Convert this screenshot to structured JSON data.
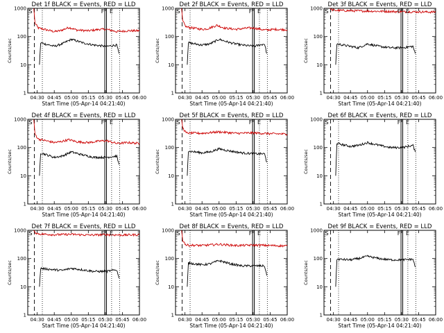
{
  "chart_data": [
    {
      "type": "line",
      "title": "Det 1f BLACK = Events, RED = LLD",
      "xlabel": "Start Time (05-Apr-14 04:21:40)",
      "ylabel": "Counts/sec",
      "yscale": "log",
      "ylim": [
        1,
        1000
      ],
      "xlim": [
        "04:21:40",
        "06:00"
      ],
      "x_ticks": [
        "04:30",
        "04:45",
        "05:00",
        "05:15",
        "05:30",
        "05:45",
        "06:00"
      ],
      "y_ticks": [
        "1",
        "10",
        "100",
        "1000"
      ],
      "markers": [
        "S",
        "F",
        "E"
      ],
      "series": [
        {
          "color": "#cc0000",
          "x": [
            "04:27",
            "04:28",
            "04:31",
            "04:45",
            "04:50",
            "04:58",
            "05:05",
            "05:15",
            "05:25",
            "05:31",
            "05:40",
            "05:50",
            "06:00"
          ],
          "values": [
            1000,
            300,
            200,
            150,
            160,
            210,
            170,
            160,
            180,
            180,
            150,
            160,
            160
          ]
        },
        {
          "color": "#000000",
          "x": [
            "04:32",
            "04:33",
            "04:45",
            "04:52",
            "05:00",
            "05:10",
            "05:20",
            "05:31",
            "05:40",
            "05:42"
          ],
          "values": [
            10,
            60,
            45,
            55,
            80,
            60,
            50,
            45,
            50,
            25
          ]
        }
      ]
    },
    {
      "type": "line",
      "title": "Det 2f BLACK = Events, RED = LLD",
      "xlabel": "Start Time (05-Apr-14 04:21:40)",
      "ylabel": "Counts/sec",
      "yscale": "log",
      "ylim": [
        1,
        1000
      ],
      "xlim": [
        "04:21:40",
        "06:00"
      ],
      "x_ticks": [
        "04:30",
        "04:45",
        "05:00",
        "05:15",
        "05:30",
        "05:45",
        "06:00"
      ],
      "y_ticks": [
        "1",
        "10",
        "100",
        "1000"
      ],
      "markers": [
        "S",
        "F",
        "E"
      ],
      "series": [
        {
          "color": "#cc0000",
          "x": [
            "04:27",
            "04:28",
            "04:31",
            "04:45",
            "04:50",
            "04:58",
            "05:05",
            "05:15",
            "05:25",
            "05:31",
            "05:40",
            "05:50",
            "06:00"
          ],
          "values": [
            1000,
            350,
            220,
            180,
            190,
            250,
            200,
            180,
            200,
            200,
            170,
            180,
            175
          ]
        },
        {
          "color": "#000000",
          "x": [
            "04:32",
            "04:33",
            "04:45",
            "04:52",
            "05:00",
            "05:10",
            "05:20",
            "05:31",
            "05:40",
            "05:42"
          ],
          "values": [
            10,
            60,
            50,
            55,
            80,
            60,
            50,
            45,
            55,
            25
          ]
        }
      ]
    },
    {
      "type": "line",
      "title": "Det 3f BLACK = Events, RED = LLD",
      "xlabel": "Start Time (05-Apr-14 04:21:40)",
      "ylabel": "Counts/sec",
      "yscale": "log",
      "ylim": [
        1,
        1000
      ],
      "xlim": [
        "04:21:40",
        "06:00"
      ],
      "x_ticks": [
        "04:30",
        "04:45",
        "05:00",
        "05:15",
        "05:30",
        "05:45",
        "06:00"
      ],
      "y_ticks": [
        "1",
        "10",
        "100",
        "1000"
      ],
      "markers": [
        "S",
        "F",
        "E"
      ],
      "series": [
        {
          "color": "#cc0000",
          "x": [
            "04:27",
            "04:28",
            "04:31",
            "04:45",
            "05:00",
            "05:15",
            "05:31",
            "05:45",
            "06:00"
          ],
          "values": [
            1000,
            900,
            850,
            820,
            800,
            780,
            760,
            750,
            740
          ]
        },
        {
          "color": "#000000",
          "x": [
            "04:32",
            "04:33",
            "04:45",
            "04:52",
            "05:00",
            "05:10",
            "05:20",
            "05:31",
            "05:40",
            "05:42"
          ],
          "values": [
            10,
            55,
            45,
            40,
            55,
            45,
            40,
            40,
            45,
            25
          ]
        }
      ]
    },
    {
      "type": "line",
      "title": "Det 4f BLACK = Events, RED = LLD",
      "xlabel": "Start Time (05-Apr-14 04:21:40)",
      "ylabel": "Counts/sec",
      "yscale": "log",
      "ylim": [
        1,
        1000
      ],
      "xlim": [
        "04:21:40",
        "06:00"
      ],
      "x_ticks": [
        "04:30",
        "04:45",
        "05:00",
        "05:15",
        "05:30",
        "05:45",
        "06:00"
      ],
      "y_ticks": [
        "1",
        "10",
        "100",
        "1000"
      ],
      "markers": [
        "S",
        "F",
        "E"
      ],
      "series": [
        {
          "color": "#cc0000",
          "x": [
            "04:27",
            "04:28",
            "04:31",
            "04:45",
            "04:50",
            "04:58",
            "05:05",
            "05:15",
            "05:25",
            "05:31",
            "05:40",
            "05:50",
            "06:00"
          ],
          "values": [
            1000,
            300,
            200,
            150,
            160,
            190,
            160,
            150,
            170,
            175,
            140,
            150,
            140
          ]
        },
        {
          "color": "#000000",
          "x": [
            "04:32",
            "04:33",
            "04:45",
            "04:52",
            "05:00",
            "05:10",
            "05:20",
            "05:31",
            "05:40",
            "05:42"
          ],
          "values": [
            10,
            65,
            45,
            50,
            70,
            55,
            45,
            45,
            50,
            25
          ]
        }
      ]
    },
    {
      "type": "line",
      "title": "Det 5f BLACK = Events, RED = LLD",
      "xlabel": "Start Time (05-Apr-14 04:21:40)",
      "ylabel": "Counts/sec",
      "yscale": "log",
      "ylim": [
        1,
        1000
      ],
      "xlim": [
        "04:21:40",
        "06:00"
      ],
      "x_ticks": [
        "04:30",
        "04:45",
        "05:00",
        "05:15",
        "05:30",
        "05:45",
        "06:00"
      ],
      "y_ticks": [
        "1",
        "10",
        "100",
        "1000"
      ],
      "markers": [
        "S",
        "F",
        "E"
      ],
      "series": [
        {
          "color": "#cc0000",
          "x": [
            "04:27",
            "04:28",
            "04:31",
            "04:45",
            "05:00",
            "05:15",
            "05:31",
            "05:45",
            "06:00"
          ],
          "values": [
            1000,
            500,
            330,
            320,
            360,
            320,
            330,
            310,
            300
          ]
        },
        {
          "color": "#000000",
          "x": [
            "04:32",
            "04:33",
            "04:45",
            "04:52",
            "05:00",
            "05:10",
            "05:20",
            "05:31",
            "05:40",
            "05:42"
          ],
          "values": [
            10,
            75,
            65,
            70,
            90,
            75,
            65,
            60,
            60,
            30
          ]
        }
      ]
    },
    {
      "type": "line",
      "title": "Det 6f BLACK = Events, RED = LLD",
      "xlabel": "Start Time (05-Apr-14 04:21:40)",
      "ylabel": "Counts/sec",
      "yscale": "log",
      "ylim": [
        1,
        1000
      ],
      "xlim": [
        "04:21:40",
        "06:00"
      ],
      "x_ticks": [
        "04:30",
        "04:45",
        "05:00",
        "05:15",
        "05:30",
        "05:45",
        "06:00"
      ],
      "y_ticks": [
        "1",
        "10",
        "100",
        "1000"
      ],
      "markers": [
        "S",
        "F",
        "E"
      ],
      "series": [
        {
          "color": "#000000",
          "x": [
            "04:32",
            "04:33",
            "04:45",
            "04:52",
            "05:00",
            "05:10",
            "05:20",
            "05:31",
            "05:40",
            "05:42"
          ],
          "values": [
            10,
            140,
            110,
            120,
            150,
            120,
            100,
            100,
            120,
            70
          ]
        }
      ]
    },
    {
      "type": "line",
      "title": "Det 7f BLACK = Events, RED = LLD",
      "xlabel": "Start Time (05-Apr-14 04:21:40)",
      "ylabel": "Counts/sec",
      "yscale": "log",
      "ylim": [
        1,
        1000
      ],
      "xlim": [
        "04:21:40",
        "06:00"
      ],
      "x_ticks": [
        "04:30",
        "04:45",
        "05:00",
        "05:15",
        "05:30",
        "05:45",
        "06:00"
      ],
      "y_ticks": [
        "1",
        "10",
        "100",
        "1000"
      ],
      "markers": [
        "S",
        "F",
        "E"
      ],
      "series": [
        {
          "color": "#cc0000",
          "x": [
            "04:27",
            "04:28",
            "04:31",
            "04:45",
            "05:00",
            "05:15",
            "05:31",
            "05:45",
            "06:00"
          ],
          "values": [
            1000,
            850,
            750,
            700,
            720,
            680,
            700,
            680,
            700
          ]
        },
        {
          "color": "#000000",
          "x": [
            "04:32",
            "04:33",
            "04:45",
            "04:52",
            "05:00",
            "05:10",
            "05:20",
            "05:31",
            "05:40",
            "05:42"
          ],
          "values": [
            10,
            45,
            40,
            38,
            45,
            40,
            35,
            35,
            40,
            20
          ]
        }
      ]
    },
    {
      "type": "line",
      "title": "Det 8f BLACK = Events, RED = LLD",
      "xlabel": "Start Time (05-Apr-14 04:21:40)",
      "ylabel": "Counts/sec",
      "yscale": "log",
      "ylim": [
        1,
        1000
      ],
      "xlim": [
        "04:21:40",
        "06:00"
      ],
      "x_ticks": [
        "04:30",
        "04:45",
        "05:00",
        "05:15",
        "05:30",
        "05:45",
        "06:00"
      ],
      "y_ticks": [
        "1",
        "10",
        "100",
        "1000"
      ],
      "markers": [
        "S",
        "F",
        "E"
      ],
      "series": [
        {
          "color": "#cc0000",
          "x": [
            "04:27",
            "04:28",
            "04:31",
            "04:45",
            "05:00",
            "05:15",
            "05:31",
            "05:45",
            "06:00"
          ],
          "values": [
            1000,
            450,
            300,
            290,
            320,
            290,
            300,
            290,
            280
          ]
        },
        {
          "color": "#000000",
          "x": [
            "04:32",
            "04:33",
            "04:45",
            "04:52",
            "05:00",
            "05:10",
            "05:20",
            "05:31",
            "05:40",
            "05:42"
          ],
          "values": [
            10,
            70,
            60,
            65,
            85,
            65,
            55,
            55,
            55,
            25
          ]
        }
      ]
    },
    {
      "type": "line",
      "title": "Det 9f BLACK = Events, RED = LLD",
      "xlabel": "Start Time (05-Apr-14 04:21:40)",
      "ylabel": "Counts/sec",
      "yscale": "log",
      "ylim": [
        1,
        1000
      ],
      "xlim": [
        "04:21:40",
        "06:00"
      ],
      "x_ticks": [
        "04:30",
        "04:45",
        "05:00",
        "05:15",
        "05:30",
        "05:45",
        "06:00"
      ],
      "y_ticks": [
        "1",
        "10",
        "100",
        "1000"
      ],
      "markers": [
        "S",
        "F",
        "E"
      ],
      "series": [
        {
          "color": "#000000",
          "x": [
            "04:32",
            "04:33",
            "04:45",
            "04:52",
            "05:00",
            "05:10",
            "05:20",
            "05:31",
            "05:40",
            "05:42"
          ],
          "values": [
            10,
            95,
            90,
            100,
            120,
            100,
            90,
            90,
            95,
            50
          ]
        }
      ]
    }
  ]
}
